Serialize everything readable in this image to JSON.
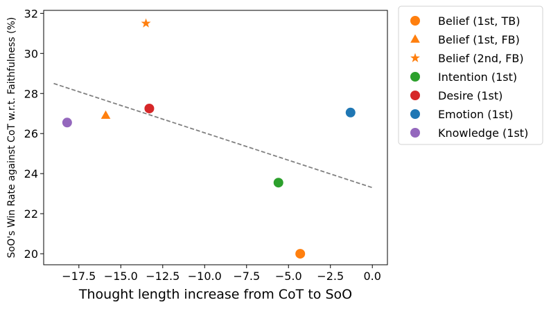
{
  "chart_data": {
    "type": "scatter",
    "title": "",
    "xlabel": "Thought length increase from CoT to SoO",
    "ylabel": "SoO's Win Rate against CoT w.r.t. Faithfulness (%)",
    "xlim": [
      -19.6,
      0.9
    ],
    "ylim": [
      19.45,
      32.15
    ],
    "x_ticks": [
      -17.5,
      -15.0,
      -12.5,
      -10.0,
      -7.5,
      -5.0,
      -2.5,
      0.0
    ],
    "x_tick_labels": [
      "−17.5",
      "−15.0",
      "−12.5",
      "−10.0",
      "−7.5",
      "−5.0",
      "−2.5",
      "0.0"
    ],
    "y_ticks": [
      20,
      22,
      24,
      26,
      28,
      30,
      32
    ],
    "y_tick_labels": [
      "20",
      "22",
      "24",
      "26",
      "28",
      "30",
      "32"
    ],
    "grid": false,
    "legend_position": "outside-right-top",
    "series": [
      {
        "name": "Belief (1st, TB)",
        "marker": "circle",
        "color": "#ff7f0e",
        "x": [
          -4.3
        ],
        "y": [
          20.0
        ]
      },
      {
        "name": "Belief (1st, FB)",
        "marker": "triangle",
        "color": "#ff7f0e",
        "x": [
          -15.9
        ],
        "y": [
          26.9
        ]
      },
      {
        "name": "Belief (2nd, FB)",
        "marker": "star",
        "color": "#ff7f0e",
        "x": [
          -13.5
        ],
        "y": [
          31.5
        ]
      },
      {
        "name": "Intention (1st)",
        "marker": "circle",
        "color": "#2ca02c",
        "x": [
          -5.6
        ],
        "y": [
          23.55
        ]
      },
      {
        "name": "Desire (1st)",
        "marker": "circle",
        "color": "#d62728",
        "x": [
          -13.3
        ],
        "y": [
          27.25
        ]
      },
      {
        "name": "Emotion (1st)",
        "marker": "circle",
        "color": "#1f77b4",
        "x": [
          -1.3
        ],
        "y": [
          27.05
        ]
      },
      {
        "name": "Knowledge (1st)",
        "marker": "circle",
        "color": "#9467bd",
        "x": [
          -18.2
        ],
        "y": [
          26.55
        ]
      }
    ],
    "trend_line": {
      "style": "dashed",
      "color": "#808080",
      "x": [
        -19.0,
        0.0
      ],
      "y": [
        28.5,
        23.3
      ]
    }
  }
}
